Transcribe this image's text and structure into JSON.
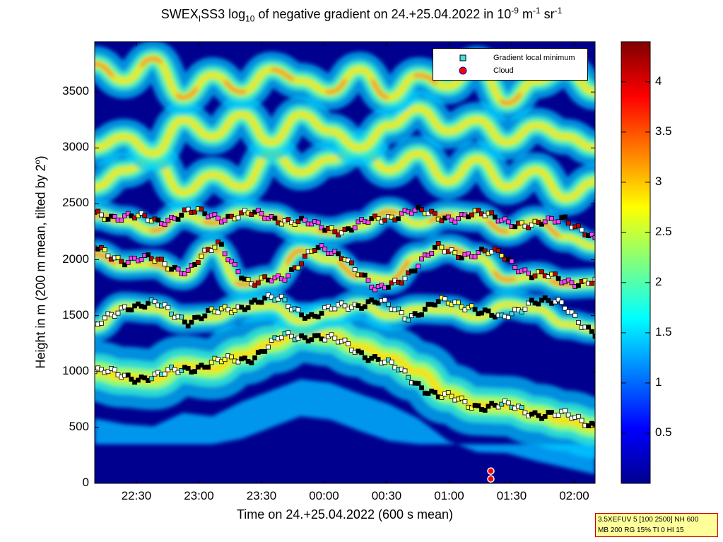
{
  "title": {
    "part1": "SWEX",
    "sub1": "I",
    "part2": "SS3 log",
    "sub2": "10",
    "part3": " of negative gradient on 24.+25.04.2022 in 10",
    "sup1": "-9",
    "part4": " m",
    "sup2": "-1",
    "part5": " sr",
    "sup3": "-1"
  },
  "axes": {
    "xlabel": "Time on 24.+25.04.2022 (600 s mean)",
    "ylabel_text": "Height in m (200 m mean, tilted by 2",
    "ylabel_sup": "o",
    "ylabel_end": ")",
    "xticks": [
      "22:30",
      "23:00",
      "23:30",
      "00:00",
      "00:30",
      "01:00",
      "01:30",
      "02:00"
    ],
    "yticks": [
      "0",
      "500",
      "1000",
      "1500",
      "2000",
      "2500",
      "3000",
      "3500"
    ],
    "cticks": [
      "0.5",
      "1",
      "1.5",
      "2",
      "2.5",
      "3",
      "3.5",
      "4"
    ]
  },
  "legend": {
    "position": "top-right",
    "items": [
      {
        "label": "Gradient local minimum",
        "marker": "cyan-square"
      },
      {
        "label": "Cloud",
        "marker": "red-circle"
      }
    ]
  },
  "info_box": {
    "line1": "3.5XEFUV 5 [100 2500] NH 600",
    "line2": "MB 200 RG 15% TI 0 HI 15"
  },
  "chart_data": {
    "type": "heatmap",
    "colormap": "jet",
    "x_range": [
      "22:10",
      "02:10"
    ],
    "y_range": [
      0,
      3950
    ],
    "color_range": [
      0,
      4.4
    ],
    "layers": [
      {
        "heights": [
          1000,
          950,
          930,
          1050,
          1020,
          1150,
          1250,
          1350,
          1320,
          1220,
          1130,
          1000,
          800,
          700,
          690,
          620,
          560,
          500
        ],
        "value": 2.5
      },
      {
        "heights": [
          1400,
          1580,
          1560,
          1470,
          1480,
          1570,
          1590,
          1450,
          1520,
          1600,
          1500,
          1560,
          1550,
          1480,
          1600,
          1560,
          1420,
          1380
        ],
        "value": 2.3
      },
      {
        "heights": [
          2050,
          1950,
          1960,
          1860,
          2100,
          1780,
          1820,
          2080,
          2000,
          1850,
          1820,
          2030,
          2100,
          2020,
          1820,
          1850,
          1780,
          1790
        ],
        "value": 2.8
      },
      {
        "heights": [
          2400,
          2350,
          2260,
          2400,
          2330,
          2420,
          2380,
          2280,
          2250,
          2300,
          2430,
          2320,
          2400,
          2380,
          2250,
          2350,
          2200,
          2120
        ],
        "value": 2.9
      },
      {
        "heights": [
          2650,
          2800,
          2900,
          2600,
          2760,
          2650,
          2950,
          2780,
          2900,
          3000,
          2800,
          2950,
          2700,
          2900,
          2650,
          2800,
          2550,
          2700
        ],
        "value": 2.7
      },
      {
        "heights": [
          3000,
          3100,
          2950,
          3250,
          3100,
          3300,
          3050,
          3300,
          3150,
          3000,
          3200,
          3350,
          3150,
          3250,
          3050,
          3200,
          3100,
          3000
        ],
        "value": 2.6
      },
      {
        "heights": [
          3750,
          3600,
          3800,
          3450,
          3650,
          3500,
          3700,
          3600,
          3500,
          3700,
          3450,
          3650,
          3550,
          3750,
          3400,
          3600,
          3700,
          3500
        ],
        "value": 3.0
      }
    ],
    "gradient_minima": {
      "x_minutes_after_2210": [
        0,
        15,
        30,
        45,
        60,
        75,
        90,
        105,
        120,
        135,
        150,
        165,
        180,
        195,
        210,
        225,
        240
      ],
      "series": [
        {
          "name": "lower-layer",
          "heights": [
            1000,
            960,
            950,
            1040,
            1080,
            1130,
            1300,
            1330,
            1240,
            1120,
            960,
            780,
            710,
            690,
            640,
            600,
            540
          ]
        },
        {
          "name": "mid-layer",
          "heights": [
            1380,
            1600,
            1590,
            1460,
            1530,
            1620,
            1640,
            1480,
            1600,
            1620,
            1500,
            1610,
            1600,
            1450,
            1650,
            1580,
            1350
          ]
        },
        {
          "name": "upper-layer",
          "heights": [
            2100,
            2000,
            1990,
            1900,
            2150,
            1760,
            1850,
            2080,
            2050,
            1700,
            1880,
            2100,
            2050,
            2050,
            1860,
            1820,
            1800
          ]
        },
        {
          "name": "top-layer",
          "heights": [
            2420,
            2380,
            2350,
            2420,
            2390,
            2400,
            2370,
            2300,
            2270,
            2350,
            2440,
            2380,
            2400,
            2380,
            2280,
            2400,
            2150
          ]
        }
      ]
    },
    "clouds": [
      {
        "time": "01:20",
        "heights": [
          40,
          110
        ]
      }
    ]
  }
}
